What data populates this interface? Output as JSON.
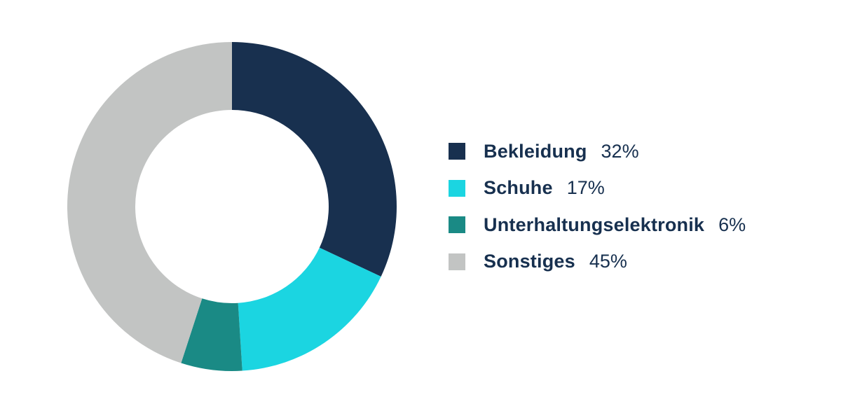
{
  "chart_data": {
    "type": "pie",
    "variant": "donut",
    "title": "",
    "legend_position": "right",
    "start_angle_deg": 270,
    "direction": "clockwise",
    "series": [
      {
        "name": "Bekleidung",
        "value": 32,
        "label": "32%",
        "color": "#18304f"
      },
      {
        "name": "Schuhe",
        "value": 17,
        "label": "17%",
        "color": "#1bd5e1"
      },
      {
        "name": "Unterhaltungselektronik",
        "value": 6,
        "label": "6%",
        "color": "#1a8a85"
      },
      {
        "name": "Sonstiges",
        "value": 45,
        "label": "45%",
        "color": "#c2c4c3"
      }
    ]
  }
}
